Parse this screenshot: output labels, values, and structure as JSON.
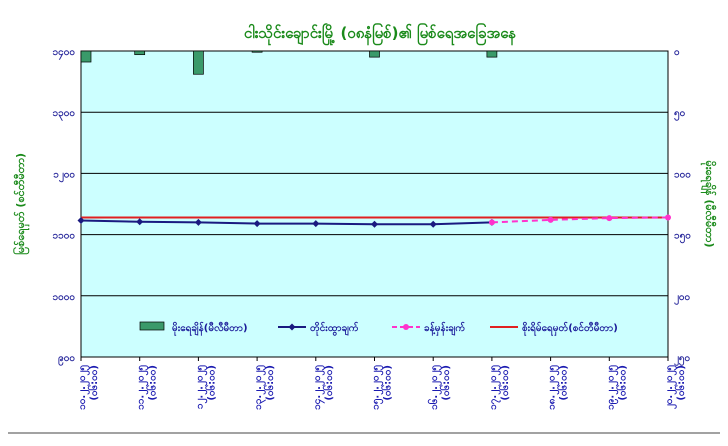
{
  "chart_data": {
    "type": "line",
    "title": "ငါးသိုင်းချောင်းမြို့ (၀၈နံမြစ်)၏ မြစ်ရေအခြေအနေ",
    "ylabel_left": "မြစ်ရေမှတ် (စင်တီမီတာ)",
    "ylabel_right": "မိုးရေချိန် (မီလီမီတာ)",
    "categories": [
      "၁၀.၂.၂၀၂၅ (၀၆:၀၀)",
      "၁၁.၂.၂၀၂၅ (၀၆:၀၀)",
      "၁၂.၂.၂၀၂၅ (၀၆:၀၀)",
      "၁၃.၂.၂၀၂၅ (၀၆:၀၀)",
      "၁၄.၂.၂၀၂၅ (၀၆:၀၀)",
      "၁၅.၂.၂၀၂၅ (၀၆:၀၀)",
      "၁၆.၂.၂၀၂၅ (၀၆:၀၀)",
      "၁၇.၂.၂၀၂၅ (၀၆:၀၀)",
      "၁၈.၂.၂၀၂၅ (၀၆:၀၀)",
      "၁၉.၂.၂၀၂၅ (၀၆:၀၀)",
      "၂၀.၂.၂၀၂၅ (၀၆:၀၀)"
    ],
    "ylim_left": [
      900,
      1400
    ],
    "ylim_right": [
      250,
      0
    ],
    "yticks_left": [
      "၉၀၀",
      "၁၀၀၀",
      "၁၁၀၀",
      "၁၂၀၀",
      "၁၃၀၀",
      "၁၄၀၀"
    ],
    "yticks_right": [
      "၂၅၀",
      "၂၀၀",
      "၁၅၀",
      "၁၀၀",
      "၅၀",
      "၀"
    ],
    "series": [
      {
        "name": "မိုးရေချိန်(မီလီမီတာ)",
        "kind": "bar",
        "axis": "right",
        "color": "#3a9a6a",
        "values": [
          9,
          3,
          19,
          1,
          0,
          5,
          0,
          5,
          0,
          0,
          0
        ]
      },
      {
        "name": "တိုင်းထွာချက်",
        "kind": "line",
        "color": "#1a1a80",
        "values": [
          1123,
          1121,
          1120,
          1118,
          1118,
          1117,
          1117,
          1120,
          null,
          null,
          null
        ]
      },
      {
        "name": "ခန့်မှန်းချက်",
        "kind": "dashed",
        "color": "#ff33cc",
        "values": [
          null,
          null,
          null,
          null,
          null,
          null,
          null,
          1120,
          1124,
          1127,
          1128
        ]
      },
      {
        "name": "စိုးရိမ်ရေမှတ်(စင်တီမီတာ)",
        "kind": "hline",
        "color": "#e02020",
        "value": 1128
      }
    ],
    "grid": true,
    "legend_position": "bottom-inside"
  },
  "colors": {
    "plot_bg": "#ccffff",
    "frame": "#000000",
    "title": "#1a8a1a"
  }
}
